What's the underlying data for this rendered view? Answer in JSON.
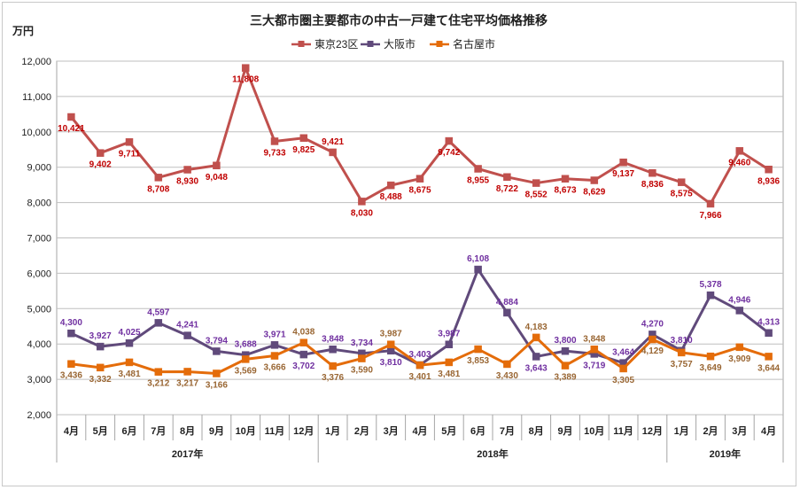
{
  "chart_data": {
    "type": "line",
    "title": "三大都市圏主要都市の中古一戸建て住宅平均価格推移",
    "ylabel": "万円",
    "ylim": [
      2000,
      12000
    ],
    "yticks": [
      "2,000",
      "3,000",
      "4,000",
      "5,000",
      "6,000",
      "7,000",
      "8,000",
      "9,000",
      "10,000",
      "11,000",
      "12,000"
    ],
    "ytick_values": [
      2000,
      3000,
      4000,
      5000,
      6000,
      7000,
      8000,
      9000,
      10000,
      11000,
      12000
    ],
    "categories": [
      "4月",
      "5月",
      "6月",
      "7月",
      "8月",
      "9月",
      "10月",
      "11月",
      "12月",
      "1月",
      "2月",
      "3月",
      "4月",
      "5月",
      "6月",
      "7月",
      "8月",
      "9月",
      "10月",
      "11月",
      "12月",
      "1月",
      "2月",
      "3月",
      "4月"
    ],
    "years": [
      {
        "label": "2017年",
        "start": 0,
        "end": 8
      },
      {
        "label": "2018年",
        "start": 9,
        "end": 20
      },
      {
        "label": "2019年",
        "start": 21,
        "end": 24
      }
    ],
    "series": [
      {
        "name": "東京23区",
        "color": "#c0504d",
        "label_color": "#c00000",
        "marker": "square",
        "values": [
          10421,
          9402,
          9711,
          8708,
          8930,
          9048,
          11808,
          9733,
          9825,
          9421,
          8030,
          8488,
          8675,
          9742,
          8955,
          8722,
          8552,
          8673,
          8629,
          9137,
          8836,
          8575,
          7966,
          9460,
          8936
        ],
        "labels": [
          "10,421",
          "9,402",
          "9,711",
          "8,708",
          "8,930",
          "9,048",
          "11,808",
          "9,733",
          "9,825",
          "9,421",
          "8,030",
          "8,488",
          "8,675",
          "9,742",
          "8,955",
          "8,722",
          "8,552",
          "8,673",
          "8,629",
          "9,137",
          "8,836",
          "8,575",
          "7,966",
          "9,460",
          "8,936"
        ],
        "label_pos": [
          "below",
          "below",
          "below",
          "below",
          "below",
          "below",
          "below",
          "below",
          "below",
          "above",
          "below",
          "below",
          "below",
          "below",
          "below",
          "below",
          "below",
          "below",
          "below",
          "below",
          "below",
          "below",
          "below",
          "below",
          "below"
        ]
      },
      {
        "name": "大阪市",
        "color": "#604a7b",
        "label_color": "#7030a0",
        "marker": "square",
        "values": [
          4300,
          3927,
          4025,
          4597,
          4241,
          3794,
          3688,
          3971,
          3702,
          3848,
          3734,
          3810,
          3403,
          3987,
          6108,
          4884,
          3643,
          3800,
          3719,
          3464,
          4270,
          3810,
          5378,
          4946,
          4313
        ],
        "labels": [
          "4,300",
          "3,927",
          "4,025",
          "4,597",
          "4,241",
          "3,794",
          "3,688",
          "3,971",
          "3,702",
          "3,848",
          "3,734",
          "3,810",
          "3,403",
          "3,987",
          "6,108",
          "4,884",
          "3,643",
          "3,800",
          "3,719",
          "3,464",
          "4,270",
          "3,810",
          "5,378",
          "4,946",
          "4,313"
        ],
        "label_pos": [
          "above",
          "above",
          "above",
          "above",
          "above",
          "above",
          "above",
          "above",
          "below",
          "above",
          "above",
          "below",
          "above",
          "above",
          "above",
          "above",
          "below",
          "above",
          "below",
          "above",
          "above",
          "above",
          "above",
          "above",
          "above"
        ]
      },
      {
        "name": "名古屋市",
        "color": "#e46c0a",
        "label_color": "#996633",
        "marker": "square",
        "values": [
          3436,
          3332,
          3481,
          3212,
          3217,
          3166,
          3569,
          3666,
          4038,
          3376,
          3590,
          3987,
          3401,
          3481,
          3853,
          3430,
          4183,
          3389,
          3848,
          3305,
          4129,
          3757,
          3649,
          3909,
          3644
        ],
        "labels": [
          "3,436",
          "3,332",
          "3,481",
          "3,212",
          "3,217",
          "3,166",
          "3,569",
          "3,666",
          "4,038",
          "3,376",
          "3,590",
          "3,987",
          "3,401",
          "3,481",
          "3,853",
          "3,430",
          "4,183",
          "3,389",
          "3,848",
          "3,305",
          "4,129",
          "3,757",
          "3,649",
          "3,909",
          "3,644"
        ],
        "label_pos": [
          "below",
          "below",
          "below",
          "below",
          "below",
          "below",
          "below",
          "below",
          "above",
          "below",
          "below",
          "above",
          "below",
          "below",
          "below",
          "below",
          "above",
          "below",
          "above",
          "below",
          "below",
          "below",
          "below",
          "below",
          "below"
        ]
      }
    ]
  }
}
